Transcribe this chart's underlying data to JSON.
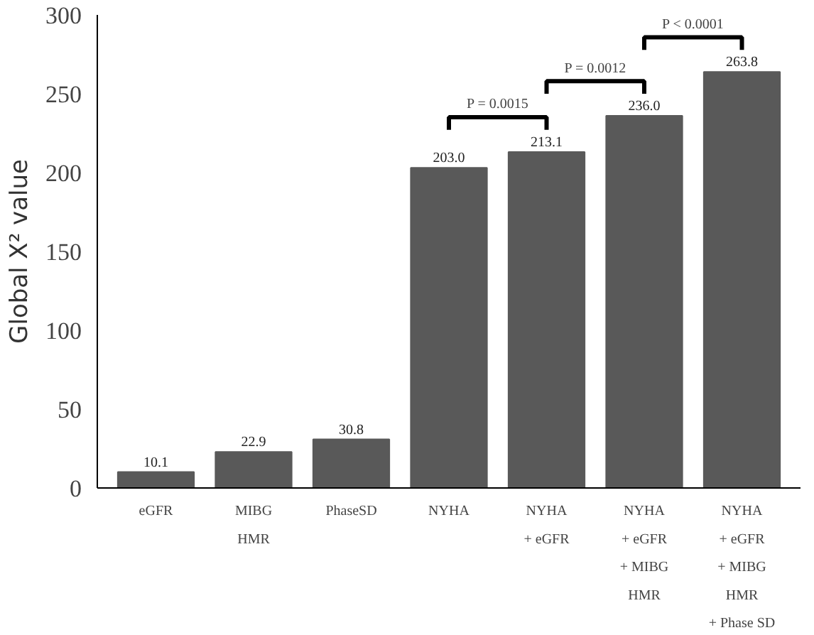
{
  "chart_data": {
    "type": "bar",
    "categories": [
      "eGFR",
      "MIBG\nHMR",
      "PhaseSD",
      "NYHA",
      "NYHA\n+ eGFR",
      "NYHA\n+ eGFR\n+ MIBG\nHMR",
      "NYHA\n+ eGFR\n+ MIBG\nHMR\n+ Phase SD"
    ],
    "values": [
      10.1,
      22.9,
      30.8,
      203.0,
      213.1,
      236.0,
      263.8
    ],
    "value_labels": [
      "10.1",
      "22.9",
      "30.8",
      "203.0",
      "213.1",
      "236.0",
      "263.8"
    ],
    "color": "#595959",
    "ylabel": "Global X² value",
    "ylim": [
      0,
      300
    ],
    "yticks": [
      0,
      50,
      100,
      150,
      200,
      250,
      300
    ],
    "grid": false,
    "annotations": [
      "P = 0.0015",
      "P = 0.0012",
      "P < 0.0001"
    ]
  }
}
